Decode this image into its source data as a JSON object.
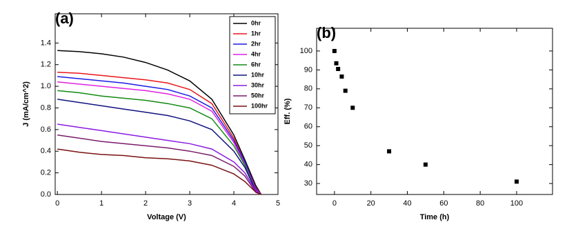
{
  "chart_data": [
    {
      "type": "line",
      "title": "(a)",
      "xlabel": "Voltage (V)",
      "ylabel": "J (mA/cm^2)",
      "x": [
        0,
        0.5,
        1,
        1.5,
        2,
        2.5,
        3,
        3.5,
        4,
        4.25,
        4.5,
        4.62
      ],
      "xlim": [
        -0.05,
        5
      ],
      "ylim": [
        0,
        1.67
      ],
      "xticks": [
        0,
        1,
        2,
        3,
        4,
        5
      ],
      "yticks": [
        {
          "value": 0,
          "label": "0.0"
        },
        0.2,
        0.4,
        0.6,
        0.8,
        {
          "value": 1,
          "label": "1.0"
        },
        1.2,
        1.4
      ],
      "legend": "upper right",
      "series": [
        {
          "name": "0hr",
          "color": "#000000",
          "values": [
            1.33,
            1.32,
            1.3,
            1.27,
            1.22,
            1.15,
            1.05,
            0.88,
            0.55,
            0.32,
            0.08,
            0
          ]
        },
        {
          "name": "1hr",
          "color": "#e8161b",
          "values": [
            1.13,
            1.12,
            1.1,
            1.08,
            1.06,
            1.03,
            0.97,
            0.84,
            0.52,
            0.3,
            0.06,
            0
          ]
        },
        {
          "name": "2hr",
          "color": "#1a1ae6",
          "values": [
            1.09,
            1.07,
            1.05,
            1.03,
            1.0,
            0.97,
            0.91,
            0.8,
            0.5,
            0.3,
            0.05,
            0
          ]
        },
        {
          "name": "4hr",
          "color": "#e020e0",
          "values": [
            1.04,
            1.02,
            1.0,
            0.98,
            0.96,
            0.93,
            0.88,
            0.77,
            0.48,
            0.28,
            0.04,
            0
          ]
        },
        {
          "name": "6hr",
          "color": "#108a10",
          "values": [
            0.96,
            0.94,
            0.91,
            0.89,
            0.87,
            0.84,
            0.8,
            0.7,
            0.45,
            0.27,
            0.03,
            0
          ]
        },
        {
          "name": "10hr",
          "color": "#101080",
          "values": [
            0.88,
            0.85,
            0.82,
            0.79,
            0.76,
            0.73,
            0.68,
            0.6,
            0.4,
            0.25,
            0.03,
            0
          ]
        },
        {
          "name": "30hr",
          "color": "#8a1ae0",
          "values": [
            0.65,
            0.62,
            0.59,
            0.56,
            0.53,
            0.5,
            0.47,
            0.42,
            0.3,
            0.2,
            0.03,
            0
          ]
        },
        {
          "name": "50hr",
          "color": "#7a1a6a",
          "values": [
            0.55,
            0.52,
            0.49,
            0.47,
            0.45,
            0.43,
            0.4,
            0.36,
            0.26,
            0.17,
            0.02,
            0
          ]
        },
        {
          "name": "100hr",
          "color": "#7a1010",
          "values": [
            0.42,
            0.39,
            0.37,
            0.36,
            0.34,
            0.33,
            0.31,
            0.27,
            0.19,
            0.12,
            0.02,
            0
          ]
        }
      ]
    },
    {
      "type": "scatter",
      "title": "(b)",
      "xlabel": "Time (h)",
      "ylabel": "Eff. (%)",
      "x": [
        0,
        1,
        2,
        4,
        6,
        10,
        30,
        50,
        100
      ],
      "values": [
        100,
        93.5,
        90.5,
        86.5,
        79,
        70,
        47,
        40,
        31
      ],
      "color": "#000000",
      "xlim": [
        -9.8,
        119.7
      ],
      "ylim": [
        24.2,
        112
      ],
      "xticks": [
        0,
        20,
        40,
        60,
        80,
        100
      ],
      "yticks": [
        30,
        40,
        50,
        60,
        70,
        80,
        90,
        100
      ]
    }
  ]
}
